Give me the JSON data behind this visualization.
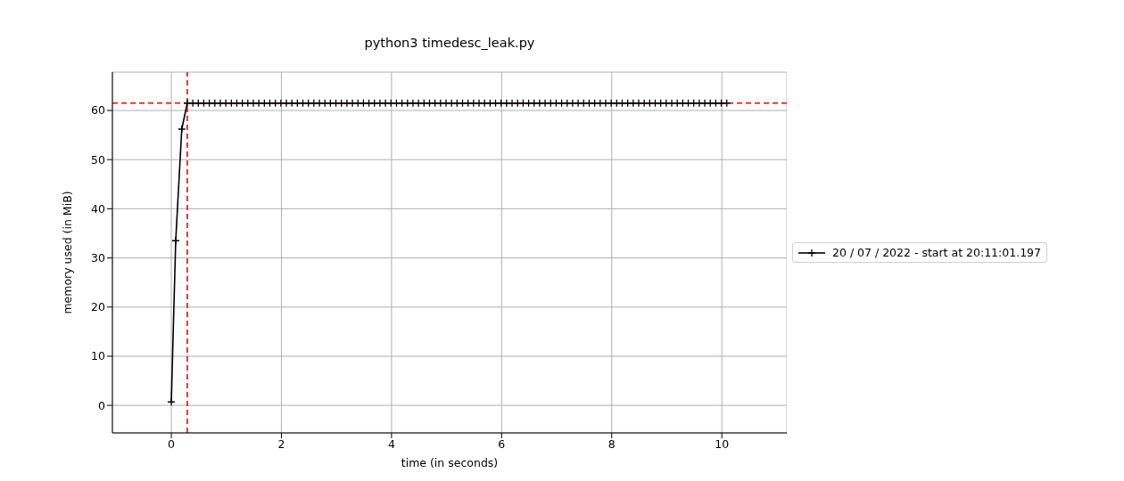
{
  "chart_data": {
    "type": "line",
    "title": "python3 timedesc_leak.py",
    "xlabel": "time (in seconds)",
    "ylabel": "memory used (in MiB)",
    "x": [
      0,
      0.08,
      0.19,
      0.29,
      0.39,
      0.49,
      0.59,
      0.69,
      0.79,
      0.89,
      0.99,
      1.09,
      1.19,
      1.29,
      1.39,
      1.49,
      1.59,
      1.69,
      1.79,
      1.89,
      1.99,
      2.09,
      2.19,
      2.29,
      2.39,
      2.49,
      2.59,
      2.69,
      2.79,
      2.89,
      2.99,
      3.09,
      3.19,
      3.29,
      3.39,
      3.49,
      3.59,
      3.69,
      3.79,
      3.89,
      3.99,
      4.09,
      4.19,
      4.29,
      4.39,
      4.49,
      4.59,
      4.69,
      4.79,
      4.89,
      4.99,
      5.09,
      5.19,
      5.29,
      5.39,
      5.49,
      5.59,
      5.69,
      5.79,
      5.89,
      5.99,
      6.09,
      6.19,
      6.29,
      6.39,
      6.49,
      6.59,
      6.69,
      6.79,
      6.89,
      6.99,
      7.09,
      7.19,
      7.29,
      7.39,
      7.49,
      7.59,
      7.69,
      7.79,
      7.89,
      7.99,
      8.09,
      8.19,
      8.29,
      8.39,
      8.49,
      8.59,
      8.69,
      8.79,
      8.89,
      8.99,
      9.09,
      9.19,
      9.29,
      9.39,
      9.49,
      9.59,
      9.69,
      9.79,
      9.89,
      9.99,
      10.09
    ],
    "series": [
      {
        "name": "20 / 07 / 2022 - start at 20:11:01.197",
        "color": "#000000",
        "values": [
          0.7,
          33.5,
          56.2,
          61.5,
          61.5,
          61.5,
          61.5,
          61.5,
          61.5,
          61.5,
          61.5,
          61.5,
          61.5,
          61.5,
          61.5,
          61.5,
          61.5,
          61.5,
          61.5,
          61.5,
          61.5,
          61.5,
          61.5,
          61.5,
          61.5,
          61.5,
          61.5,
          61.5,
          61.5,
          61.5,
          61.5,
          61.5,
          61.5,
          61.5,
          61.5,
          61.5,
          61.5,
          61.5,
          61.5,
          61.5,
          61.5,
          61.5,
          61.5,
          61.5,
          61.5,
          61.5,
          61.5,
          61.5,
          61.5,
          61.5,
          61.5,
          61.5,
          61.5,
          61.5,
          61.5,
          61.5,
          61.5,
          61.5,
          61.5,
          61.5,
          61.5,
          61.5,
          61.5,
          61.5,
          61.5,
          61.5,
          61.5,
          61.5,
          61.5,
          61.5,
          61.5,
          61.5,
          61.5,
          61.5,
          61.5,
          61.5,
          61.5,
          61.5,
          61.5,
          61.5,
          61.5,
          61.5,
          61.5,
          61.5,
          61.5,
          61.5,
          61.5,
          61.5,
          61.5,
          61.5,
          61.5,
          61.5,
          61.5,
          61.5,
          61.5,
          61.5,
          61.5,
          61.5,
          61.5,
          61.5,
          61.5,
          61.5
        ]
      }
    ],
    "xlim": [
      -1.07,
      11.18
    ],
    "xticks": [
      0,
      2,
      4,
      6,
      8,
      10
    ],
    "ylim": [
      -5.6,
      67.8
    ],
    "yticks": [
      0,
      10,
      20,
      30,
      40,
      50,
      60
    ],
    "ref_lines": [
      {
        "axis": "y",
        "value": 61.5,
        "color": "#ff0000",
        "line_style": "dashed"
      },
      {
        "axis": "x",
        "value": 0.29,
        "color": "#ff0000",
        "line_style": "dashed"
      }
    ],
    "grid": true,
    "legend": "right",
    "marker": "cross",
    "line_style": "solid"
  }
}
